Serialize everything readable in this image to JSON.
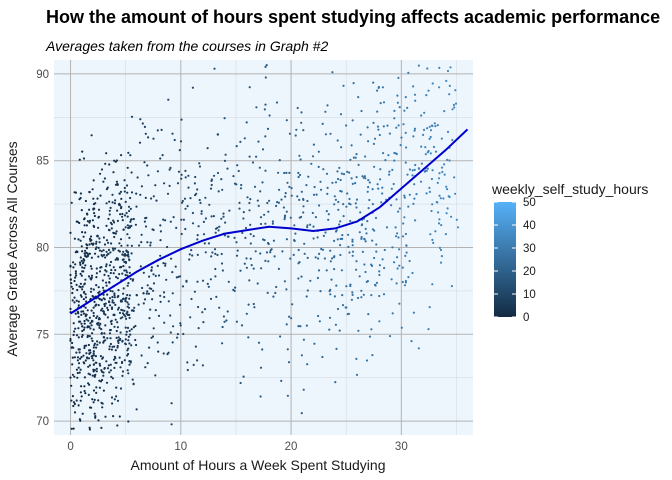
{
  "chart_data": {
    "type": "scatter",
    "title": "How the amount of hours spent studying affects academic performance",
    "subtitle": "Averages taken from the courses in Graph #2",
    "xlabel": "Amount of Hours a Week Spent Studying",
    "ylabel": "Average Grade Across All Courses",
    "xlim": [
      -1.5,
      36.5
    ],
    "ylim": [
      69.2,
      90.8
    ],
    "x_ticks": [
      0,
      10,
      20,
      30
    ],
    "y_ticks": [
      70,
      75,
      80,
      85,
      90
    ],
    "grid": true,
    "point_count_approx": 1700,
    "color_scale": {
      "variable": "weekly_self_study_hours",
      "min": 0,
      "max": 50,
      "ticks": [
        0,
        10,
        20,
        30,
        40,
        50
      ],
      "low_color": "#132B43",
      "high_color": "#56B1F7"
    },
    "legend_position": "right",
    "trend_line": {
      "type": "smooth",
      "color": "#0000cc",
      "x": [
        0,
        2,
        4,
        6,
        8,
        10,
        12,
        14,
        16,
        18,
        20,
        22,
        24,
        26,
        28,
        30,
        32,
        34,
        36
      ],
      "y": [
        76.2,
        77.0,
        77.8,
        78.6,
        79.3,
        79.9,
        80.4,
        80.8,
        81.0,
        81.2,
        81.1,
        80.95,
        81.1,
        81.5,
        82.3,
        83.4,
        84.5,
        85.6,
        86.8
      ]
    },
    "panel_background": "#eef6fd",
    "grid_color": "#b3b3b3"
  }
}
